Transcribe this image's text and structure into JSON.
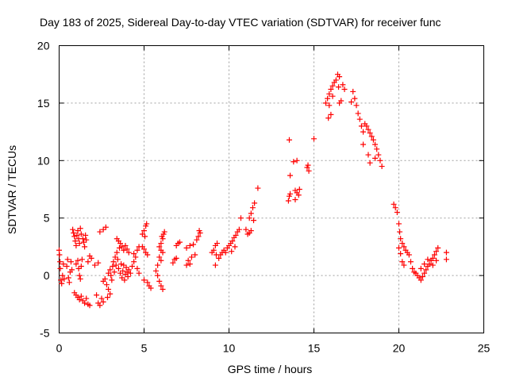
{
  "chart_data": {
    "type": "scatter",
    "title": "Day 183 of 2025, Sidereal Day-to-day VTEC variation (SDTVAR) for receiver func",
    "xlabel": "GPS time / hours",
    "ylabel": "SDTVAR / TECUs",
    "xlim": [
      0,
      25
    ],
    "ylim": [
      -5,
      20
    ],
    "xticks": [
      0,
      5,
      10,
      15,
      20,
      25
    ],
    "yticks": [
      -5,
      0,
      5,
      10,
      15,
      20
    ],
    "grid": true,
    "marker": "+",
    "color": "#ff0000",
    "series": [
      {
        "name": "SDTVAR",
        "points": [
          [
            0.0,
            2.2
          ],
          [
            0.02,
            1.8
          ],
          [
            0.05,
            1.2
          ],
          [
            0.07,
            0.6
          ],
          [
            0.1,
            -0.4
          ],
          [
            0.15,
            -0.7
          ],
          [
            0.2,
            0.0
          ],
          [
            0.25,
            1.0
          ],
          [
            0.3,
            -0.3
          ],
          [
            0.45,
            0.8
          ],
          [
            0.5,
            1.4
          ],
          [
            0.55,
            -0.2
          ],
          [
            0.6,
            -0.6
          ],
          [
            0.65,
            0.3
          ],
          [
            0.7,
            1.2
          ],
          [
            0.75,
            0.5
          ],
          [
            0.8,
            4.0
          ],
          [
            0.85,
            3.7
          ],
          [
            0.9,
            3.4
          ],
          [
            0.95,
            3.0
          ],
          [
            1.0,
            2.6
          ],
          [
            1.05,
            3.5
          ],
          [
            1.1,
            3.9
          ],
          [
            1.15,
            3.2
          ],
          [
            1.2,
            2.8
          ],
          [
            1.25,
            4.1
          ],
          [
            1.3,
            3.6
          ],
          [
            0.9,
            -1.5
          ],
          [
            1.0,
            -1.7
          ],
          [
            1.1,
            -1.9
          ],
          [
            1.2,
            -2.1
          ],
          [
            1.3,
            -1.8
          ],
          [
            1.4,
            -2.2
          ],
          [
            1.5,
            -2.4
          ],
          [
            1.6,
            -2.0
          ],
          [
            1.7,
            -2.5
          ],
          [
            1.8,
            -2.6
          ],
          [
            1.0,
            1.0
          ],
          [
            1.1,
            1.3
          ],
          [
            1.15,
            0.6
          ],
          [
            1.2,
            0.0
          ],
          [
            1.25,
            -0.3
          ],
          [
            1.3,
            0.8
          ],
          [
            1.35,
            1.4
          ],
          [
            1.4,
            3.2
          ],
          [
            1.45,
            2.9
          ],
          [
            1.5,
            2.5
          ],
          [
            1.55,
            3.5
          ],
          [
            1.6,
            3.1
          ],
          [
            1.7,
            1.2
          ],
          [
            1.8,
            1.7
          ],
          [
            1.9,
            1.5
          ],
          [
            2.1,
            0.9
          ],
          [
            2.3,
            1.1
          ],
          [
            2.2,
            -1.7
          ],
          [
            2.3,
            -2.4
          ],
          [
            2.4,
            -2.6
          ],
          [
            2.5,
            -2.0
          ],
          [
            2.6,
            -2.3
          ],
          [
            2.4,
            3.8
          ],
          [
            2.6,
            4.0
          ],
          [
            2.75,
            4.2
          ],
          [
            2.6,
            -0.5
          ],
          [
            2.7,
            -0.3
          ],
          [
            2.8,
            -0.8
          ],
          [
            2.9,
            -1.2
          ],
          [
            3.0,
            -1.6
          ],
          [
            2.85,
            -1.9
          ],
          [
            2.9,
            0.2
          ],
          [
            3.0,
            0.5
          ],
          [
            3.05,
            0.0
          ],
          [
            3.1,
            -0.4
          ],
          [
            3.15,
            0.8
          ],
          [
            3.2,
            1.2
          ],
          [
            3.25,
            0.3
          ],
          [
            3.3,
            1.6
          ],
          [
            3.35,
            0.9
          ],
          [
            3.4,
            2.0
          ],
          [
            3.45,
            1.4
          ],
          [
            3.5,
            0.6
          ],
          [
            3.55,
            2.4
          ],
          [
            3.6,
            0.2
          ],
          [
            3.65,
            1.0
          ],
          [
            3.7,
            -0.2
          ],
          [
            3.75,
            0.4
          ],
          [
            3.8,
            0.9
          ],
          [
            3.85,
            -0.4
          ],
          [
            3.9,
            0.1
          ],
          [
            3.95,
            0.7
          ],
          [
            4.0,
            0.3
          ],
          [
            4.05,
            -0.1
          ],
          [
            4.1,
            0.5
          ],
          [
            4.2,
            0.2
          ],
          [
            3.4,
            3.2
          ],
          [
            3.5,
            3.0
          ],
          [
            3.6,
            2.8
          ],
          [
            3.7,
            2.5
          ],
          [
            3.8,
            2.2
          ],
          [
            3.9,
            2.6
          ],
          [
            4.0,
            2.3
          ],
          [
            4.1,
            2.0
          ],
          [
            4.3,
            0.8
          ],
          [
            4.4,
            1.2
          ],
          [
            4.5,
            1.6
          ],
          [
            4.6,
            2.2
          ],
          [
            4.7,
            2.5
          ],
          [
            4.4,
            1.9
          ],
          [
            4.6,
            0.6
          ],
          [
            4.7,
            0.2
          ],
          [
            4.9,
            2.5
          ],
          [
            5.0,
            2.3
          ],
          [
            5.1,
            2.0
          ],
          [
            5.2,
            1.8
          ],
          [
            4.9,
            3.6
          ],
          [
            5.0,
            3.9
          ],
          [
            5.1,
            4.3
          ],
          [
            5.15,
            4.5
          ],
          [
            5.05,
            3.4
          ],
          [
            5.0,
            -0.4
          ],
          [
            5.2,
            -0.6
          ],
          [
            5.3,
            -0.9
          ],
          [
            5.4,
            -1.1
          ],
          [
            5.7,
            0.4
          ],
          [
            5.8,
            0.0
          ],
          [
            5.9,
            -0.5
          ],
          [
            6.0,
            -0.9
          ],
          [
            6.1,
            -1.2
          ],
          [
            5.8,
            0.9
          ],
          [
            6.0,
            1.3
          ],
          [
            5.9,
            1.6
          ],
          [
            5.9,
            2.5
          ],
          [
            6.0,
            2.2
          ],
          [
            6.1,
            2.0
          ],
          [
            6.0,
            2.8
          ],
          [
            6.05,
            3.4
          ],
          [
            6.15,
            3.6
          ],
          [
            6.2,
            3.8
          ],
          [
            6.1,
            3.2
          ],
          [
            6.7,
            1.1
          ],
          [
            6.8,
            1.4
          ],
          [
            6.9,
            1.5
          ],
          [
            6.9,
            2.6
          ],
          [
            7.0,
            2.8
          ],
          [
            7.1,
            2.9
          ],
          [
            7.5,
            2.4
          ],
          [
            7.7,
            2.6
          ],
          [
            7.9,
            2.7
          ],
          [
            7.6,
            1.3
          ],
          [
            7.8,
            1.6
          ],
          [
            8.0,
            1.8
          ],
          [
            7.5,
            0.9
          ],
          [
            7.7,
            1.0
          ],
          [
            8.1,
            3.1
          ],
          [
            8.2,
            3.4
          ],
          [
            8.3,
            3.7
          ],
          [
            8.25,
            3.9
          ],
          [
            9.0,
            2.0
          ],
          [
            9.1,
            2.2
          ],
          [
            9.2,
            2.6
          ],
          [
            9.3,
            2.8
          ],
          [
            9.25,
            1.8
          ],
          [
            9.2,
            0.9
          ],
          [
            9.4,
            1.5
          ],
          [
            9.5,
            1.8
          ],
          [
            9.6,
            2.0
          ],
          [
            9.7,
            2.2
          ],
          [
            9.8,
            2.0
          ],
          [
            9.9,
            2.4
          ],
          [
            10.0,
            2.6
          ],
          [
            10.1,
            2.8
          ],
          [
            10.2,
            3.0
          ],
          [
            10.3,
            3.3
          ],
          [
            10.4,
            3.5
          ],
          [
            10.5,
            3.8
          ],
          [
            10.6,
            4.0
          ],
          [
            10.15,
            2.1
          ],
          [
            10.35,
            2.5
          ],
          [
            10.7,
            5.0
          ],
          [
            11.0,
            4.0
          ],
          [
            11.1,
            3.6
          ],
          [
            11.2,
            3.7
          ],
          [
            11.3,
            3.9
          ],
          [
            11.2,
            5.0
          ],
          [
            11.3,
            5.4
          ],
          [
            11.4,
            5.9
          ],
          [
            11.5,
            6.3
          ],
          [
            11.45,
            4.8
          ],
          [
            11.7,
            7.6
          ],
          [
            13.5,
            6.5
          ],
          [
            13.55,
            6.9
          ],
          [
            13.6,
            7.1
          ],
          [
            13.6,
            8.7
          ],
          [
            13.55,
            11.8
          ],
          [
            13.8,
            9.9
          ],
          [
            14.0,
            10.0
          ],
          [
            13.9,
            6.6
          ],
          [
            13.9,
            7.4
          ],
          [
            14.0,
            7.2
          ],
          [
            14.1,
            7.0
          ],
          [
            14.15,
            7.5
          ],
          [
            14.6,
            9.4
          ],
          [
            14.7,
            9.1
          ],
          [
            14.65,
            9.6
          ],
          [
            15.0,
            11.9
          ],
          [
            15.7,
            15.0
          ],
          [
            15.8,
            15.4
          ],
          [
            15.9,
            15.8
          ],
          [
            16.0,
            16.2
          ],
          [
            16.1,
            16.5
          ],
          [
            16.2,
            16.8
          ],
          [
            16.1,
            15.6
          ],
          [
            15.9,
            14.8
          ],
          [
            15.85,
            13.7
          ],
          [
            16.0,
            14.0
          ],
          [
            16.3,
            17.0
          ],
          [
            16.4,
            17.5
          ],
          [
            16.5,
            17.3
          ],
          [
            16.45,
            16.4
          ],
          [
            16.7,
            16.6
          ],
          [
            16.8,
            16.2
          ],
          [
            16.6,
            15.2
          ],
          [
            16.5,
            15.0
          ],
          [
            17.2,
            15.1
          ],
          [
            17.3,
            16.0
          ],
          [
            17.4,
            15.4
          ],
          [
            17.5,
            14.8
          ],
          [
            17.6,
            14.1
          ],
          [
            17.7,
            13.6
          ],
          [
            17.8,
            13.0
          ],
          [
            17.9,
            12.5
          ],
          [
            18.0,
            13.2
          ],
          [
            18.1,
            13.0
          ],
          [
            18.2,
            12.7
          ],
          [
            18.3,
            12.4
          ],
          [
            18.4,
            12.1
          ],
          [
            18.5,
            11.8
          ],
          [
            18.6,
            11.4
          ],
          [
            18.7,
            11.0
          ],
          [
            18.8,
            10.5
          ],
          [
            18.9,
            10.0
          ],
          [
            19.0,
            9.5
          ],
          [
            18.6,
            10.2
          ],
          [
            18.3,
            9.8
          ],
          [
            18.2,
            10.5
          ],
          [
            17.9,
            11.4
          ],
          [
            19.7,
            6.2
          ],
          [
            19.8,
            5.9
          ],
          [
            19.9,
            5.5
          ],
          [
            20.0,
            4.5
          ],
          [
            20.05,
            3.8
          ],
          [
            20.1,
            3.2
          ],
          [
            20.2,
            2.8
          ],
          [
            20.3,
            2.5
          ],
          [
            20.4,
            2.2
          ],
          [
            20.5,
            2.0
          ],
          [
            20.6,
            1.8
          ],
          [
            20.0,
            2.4
          ],
          [
            20.1,
            1.9
          ],
          [
            20.2,
            1.2
          ],
          [
            20.3,
            0.9
          ],
          [
            20.7,
            1.2
          ],
          [
            20.8,
            0.6
          ],
          [
            20.9,
            0.3
          ],
          [
            21.0,
            0.2
          ],
          [
            21.1,
            0.0
          ],
          [
            21.2,
            -0.2
          ],
          [
            21.3,
            -0.4
          ],
          [
            21.4,
            -0.1
          ],
          [
            21.5,
            0.2
          ],
          [
            21.6,
            0.5
          ],
          [
            21.7,
            0.8
          ],
          [
            21.8,
            1.0
          ],
          [
            21.9,
            1.3
          ],
          [
            22.0,
            1.5
          ],
          [
            22.1,
            1.8
          ],
          [
            22.2,
            2.1
          ],
          [
            22.3,
            2.4
          ],
          [
            21.5,
            1.0
          ],
          [
            21.7,
            1.4
          ],
          [
            22.0,
            0.9
          ],
          [
            22.2,
            1.3
          ],
          [
            21.3,
            0.6
          ],
          [
            22.8,
            2.0
          ],
          [
            22.8,
            1.4
          ]
        ]
      }
    ]
  }
}
